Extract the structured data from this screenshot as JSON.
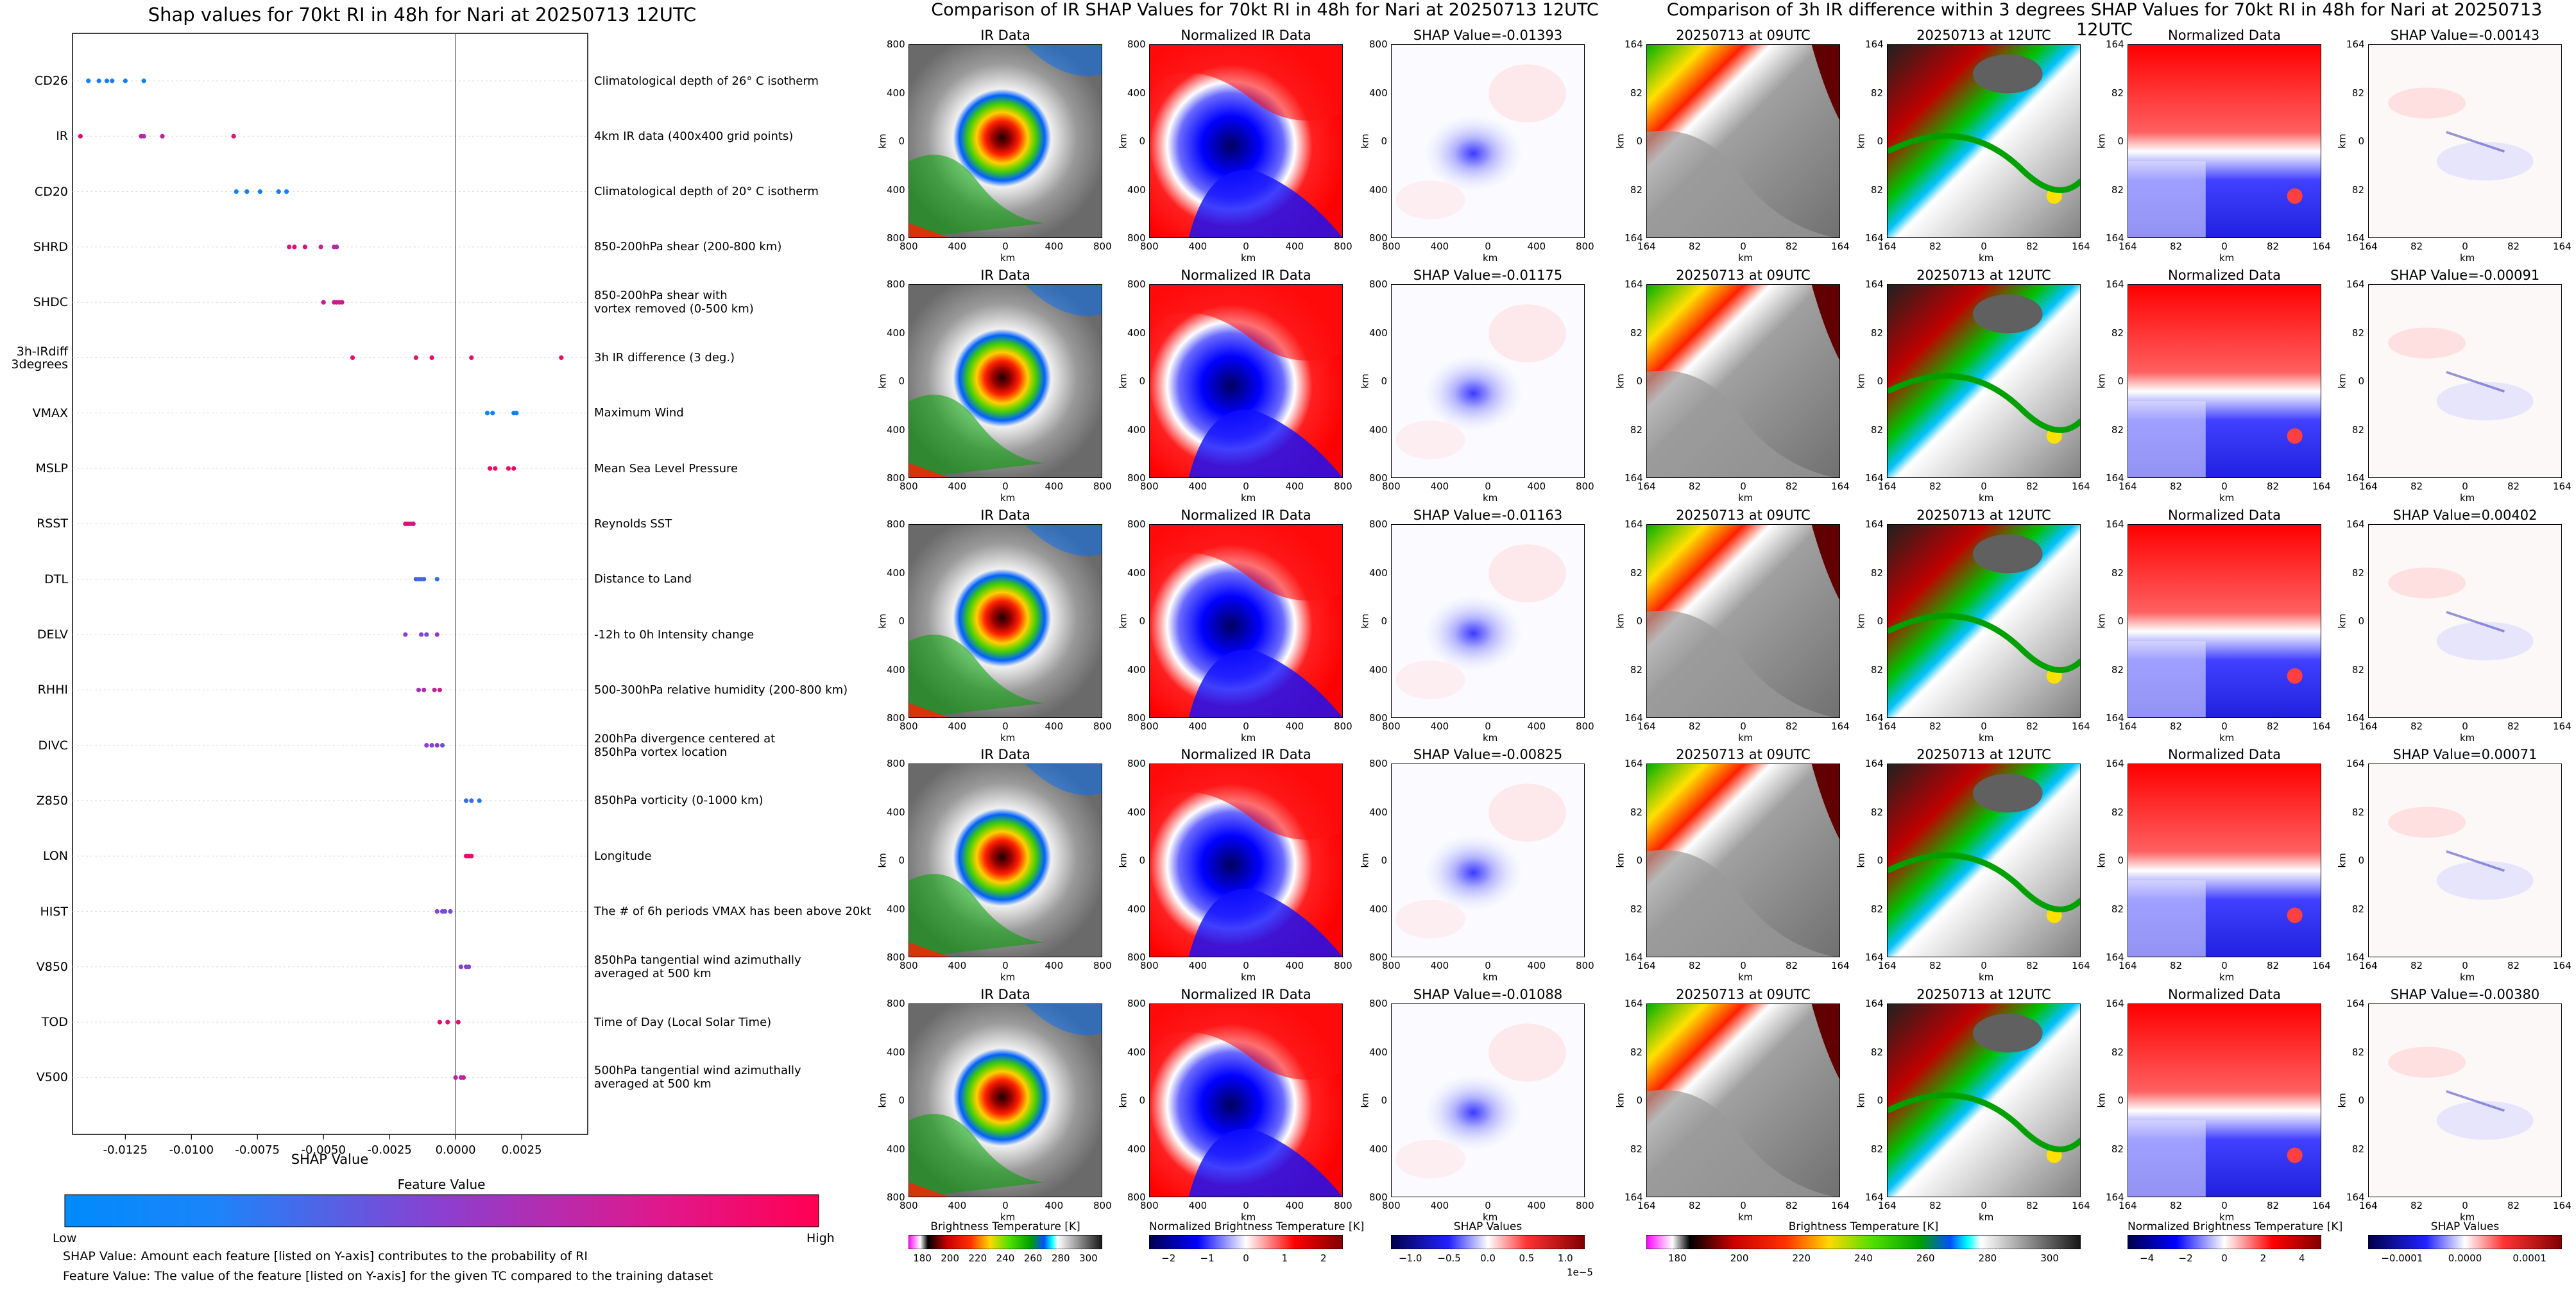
{
  "figure": {
    "left_title": "Shap values for 70kt RI in 48h for Nari at 20250713 12UTC",
    "middle_title": "Comparison of IR SHAP Values for 70kt RI in 48h for Nari at 20250713 12UTC",
    "right_title": "Comparison of 3h IR difference within 3 degrees SHAP Values for 70kt RI in 48h for Nari at 20250713 12UTC"
  },
  "chart_data": [
    {
      "type": "scatter",
      "title": "Shap values for 70kt RI in 48h for Nari at 20250713 12UTC",
      "xlabel": "SHAP Value",
      "xlim": [
        -0.0145,
        0.005
      ],
      "xticks": [
        "-0.0125",
        "-0.0100",
        "-0.0075",
        "-0.0050",
        "-0.0025",
        "0.0000",
        "0.0025"
      ],
      "xtick_values": [
        -0.0125,
        -0.01,
        -0.0075,
        -0.005,
        -0.0025,
        0.0,
        0.0025
      ],
      "colorbar": {
        "label": "Feature Value",
        "low": "Low",
        "high": "High",
        "low_color": "#008bfb",
        "high_color": "#ff0052"
      },
      "features": [
        {
          "name": "CD26",
          "description": "Climatological depth of 26° C isotherm",
          "points": [
            [
              -0.0139,
              0.05
            ],
            [
              -0.0135,
              0.1
            ],
            [
              -0.0132,
              0.08
            ],
            [
              -0.013,
              0.12
            ],
            [
              -0.0125,
              0.1
            ],
            [
              -0.0118,
              0.06
            ]
          ]
        },
        {
          "name": "IR",
          "description": "4km IR data (400x400 grid points)",
          "points": [
            [
              -0.0142,
              0.9
            ],
            [
              -0.0119,
              0.75
            ],
            [
              -0.0118,
              0.6
            ],
            [
              -0.0111,
              0.7
            ],
            [
              -0.0084,
              0.85
            ]
          ]
        },
        {
          "name": "CD20",
          "description": "Climatological depth of 20° C isotherm",
          "points": [
            [
              -0.0083,
              0.05
            ],
            [
              -0.0079,
              0.08
            ],
            [
              -0.0074,
              0.06
            ],
            [
              -0.0067,
              0.1
            ],
            [
              -0.0064,
              0.07
            ]
          ]
        },
        {
          "name": "SHRD",
          "description": "850-200hPa shear (200-800 km)",
          "points": [
            [
              -0.0063,
              0.8
            ],
            [
              -0.0061,
              0.9
            ],
            [
              -0.0057,
              0.85
            ],
            [
              -0.0051,
              0.75
            ],
            [
              -0.0046,
              0.7
            ],
            [
              -0.0045,
              0.65
            ]
          ]
        },
        {
          "name": "SHDC",
          "description": "850-200hPa shear with\nvortex removed (0-500 km)",
          "points": [
            [
              -0.005,
              0.8
            ],
            [
              -0.0046,
              0.75
            ],
            [
              -0.0045,
              0.85
            ],
            [
              -0.0044,
              0.7
            ],
            [
              -0.0043,
              0.8
            ]
          ]
        },
        {
          "name": "3h-IRdiff\n3degrees",
          "description": "3h IR difference (3 deg.)",
          "points": [
            [
              -0.0039,
              0.9
            ],
            [
              -0.0015,
              0.85
            ],
            [
              -0.0009,
              0.95
            ],
            [
              0.0006,
              0.92
            ],
            [
              0.004,
              0.95
            ]
          ]
        },
        {
          "name": "VMAX",
          "description": "Maximum Wind",
          "points": [
            [
              0.0012,
              0.05
            ],
            [
              0.0014,
              0.05
            ],
            [
              0.0022,
              0.06
            ],
            [
              0.0023,
              0.05
            ]
          ]
        },
        {
          "name": "MSLP",
          "description": "Mean Sea Level Pressure",
          "points": [
            [
              0.0013,
              0.95
            ],
            [
              0.0015,
              0.92
            ],
            [
              0.002,
              0.9
            ],
            [
              0.0022,
              0.93
            ]
          ]
        },
        {
          "name": "RSST",
          "description": "Reynolds SST",
          "points": [
            [
              -0.0019,
              0.85
            ],
            [
              -0.0018,
              0.9
            ],
            [
              -0.0017,
              0.8
            ],
            [
              -0.0016,
              0.82
            ]
          ]
        },
        {
          "name": "DTL",
          "description": "Distance to Land",
          "points": [
            [
              -0.0015,
              0.25
            ],
            [
              -0.0014,
              0.2
            ],
            [
              -0.0013,
              0.3
            ],
            [
              -0.0012,
              0.22
            ],
            [
              -0.0007,
              0.15
            ]
          ]
        },
        {
          "name": "DELV",
          "description": "-12h to 0h Intensity change",
          "points": [
            [
              -0.0019,
              0.5
            ],
            [
              -0.0013,
              0.45
            ],
            [
              -0.0011,
              0.4
            ],
            [
              -0.0007,
              0.55
            ]
          ]
        },
        {
          "name": "RHHI",
          "description": "500-300hPa relative humidity (200-800 km)",
          "points": [
            [
              -0.0014,
              0.6
            ],
            [
              -0.0012,
              0.65
            ],
            [
              -0.0008,
              0.7
            ],
            [
              -0.0006,
              0.75
            ]
          ]
        },
        {
          "name": "DIVC",
          "description": "200hPa divergence centered at\n850hPa vortex location",
          "points": [
            [
              -0.0011,
              0.5
            ],
            [
              -0.0009,
              0.45
            ],
            [
              -0.0007,
              0.55
            ],
            [
              -0.0005,
              0.35
            ]
          ]
        },
        {
          "name": "Z850",
          "description": "850hPa vorticity (0-1000 km)",
          "points": [
            [
              0.0004,
              0.2
            ],
            [
              0.0006,
              0.25
            ],
            [
              0.0009,
              0.15
            ]
          ]
        },
        {
          "name": "LON",
          "description": "Longitude",
          "points": [
            [
              0.0004,
              0.9
            ],
            [
              0.0005,
              0.92
            ],
            [
              0.0006,
              0.88
            ]
          ]
        },
        {
          "name": "HIST",
          "description": "The # of 6h periods VMAX has been above 20kt",
          "points": [
            [
              -0.0007,
              0.45
            ],
            [
              -0.0005,
              0.5
            ],
            [
              -0.0004,
              0.4
            ],
            [
              -0.0002,
              0.42
            ]
          ]
        },
        {
          "name": "V850",
          "description": "850hPa tangential wind azimuthally\naveraged at 500 km",
          "points": [
            [
              0.0002,
              0.5
            ],
            [
              0.0004,
              0.55
            ],
            [
              0.0005,
              0.45
            ]
          ]
        },
        {
          "name": "TOD",
          "description": "Time of Day (Local Solar Time)",
          "points": [
            [
              -0.0006,
              0.9
            ],
            [
              -0.0003,
              0.85
            ],
            [
              0.0001,
              0.88
            ]
          ]
        },
        {
          "name": "V500",
          "description": "500hPa tangential wind azimuthally\naveraged at 500 km",
          "points": [
            [
              0.0,
              0.7
            ],
            [
              0.0002,
              0.65
            ],
            [
              0.0003,
              0.75
            ]
          ]
        }
      ]
    },
    {
      "type": "heatmap",
      "panels_columns": [
        "IR Data",
        "Normalized IR Data",
        "SHAP Value"
      ],
      "shap_values": [
        "-0.01393",
        "-0.01175",
        "-0.01163",
        "-0.00825",
        "-0.01088"
      ],
      "axis_ticks": [
        "800",
        "400",
        "0",
        "400",
        "800"
      ],
      "axis_label": "km",
      "colorbars": [
        {
          "label": "Brightness Temperature [K]",
          "ticks": [
            "180",
            "200",
            "220",
            "240",
            "260",
            "280",
            "300"
          ]
        },
        {
          "label": "Normalized Brightness Temperature [K]",
          "ticks": [
            "−2",
            "−1",
            "0",
            "1",
            "2"
          ]
        },
        {
          "label": "SHAP Values",
          "ticks": [
            "−1.0",
            "−0.5",
            "0.0",
            "0.5",
            "1.0"
          ],
          "offset": "1e−5"
        }
      ]
    },
    {
      "type": "heatmap",
      "panels_columns": [
        "20250713 at 09UTC",
        "20250713 at 12UTC",
        "Normalized Data",
        "SHAP Value"
      ],
      "shap_values": [
        "-0.00143",
        "-0.00091",
        "0.00402",
        "0.00071",
        "-0.00380"
      ],
      "axis_ticks": [
        "164",
        "82",
        "0",
        "82",
        "164"
      ],
      "axis_label": "km",
      "colorbars": [
        {
          "label": "Brightness Temperature [K]",
          "ticks": [
            "180",
            "200",
            "220",
            "240",
            "260",
            "280",
            "300"
          ]
        },
        {
          "label": "Normalized Brightness Temperature [K]",
          "ticks": [
            "−4",
            "−2",
            "0",
            "2",
            "4"
          ]
        },
        {
          "label": "SHAP Values",
          "ticks": [
            "−0.0001",
            "0.0000",
            "0.0001"
          ]
        }
      ]
    }
  ],
  "footer": {
    "line1": "SHAP Value: Amount each feature [listed on Y-axis] contributes to the probability of RI",
    "line2": "Feature Value: The value of the feature [listed on Y-axis] for the given TC compared to the training dataset"
  },
  "labels": {
    "shap_value_prefix": "SHAP Value=",
    "km": "km"
  }
}
